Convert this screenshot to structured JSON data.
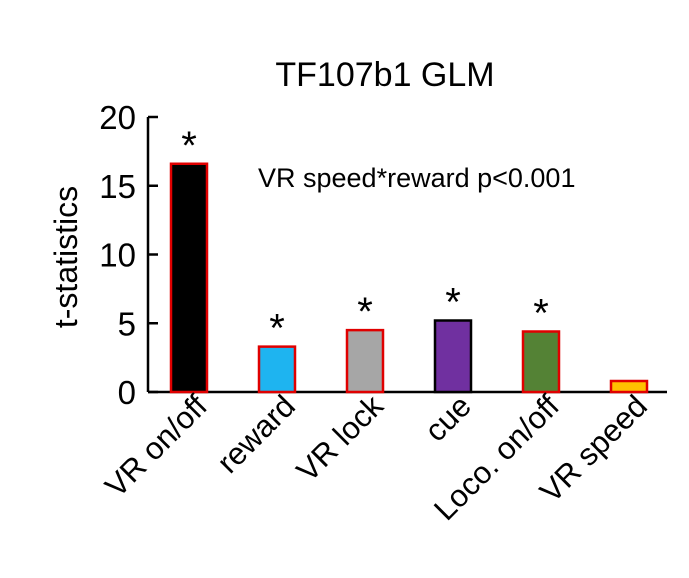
{
  "chart_data": {
    "type": "bar",
    "title": "TF107b1 GLM",
    "ylabel": "t-statistics",
    "xlabel": "",
    "ylim": [
      0,
      20
    ],
    "yticks": [
      0,
      5,
      10,
      15,
      20
    ],
    "annotation": "VR speed*reward p<0.001",
    "significance_marker": "*",
    "grid": false,
    "categories": [
      "VR on/off",
      "reward",
      "VR lock",
      "cue",
      "Loco. on/off",
      "VR speed"
    ],
    "values": [
      16.6,
      3.3,
      4.5,
      5.2,
      4.4,
      0.8
    ],
    "significant": [
      true,
      true,
      true,
      true,
      true,
      false
    ],
    "fill_colors": [
      "#000000",
      "#1eb4f0",
      "#a6a6a6",
      "#7030a0",
      "#548235",
      "#ffc000"
    ],
    "edge_colors": [
      "#e00000",
      "#e00000",
      "#e00000",
      "#000000",
      "#e00000",
      "#e00000"
    ]
  }
}
